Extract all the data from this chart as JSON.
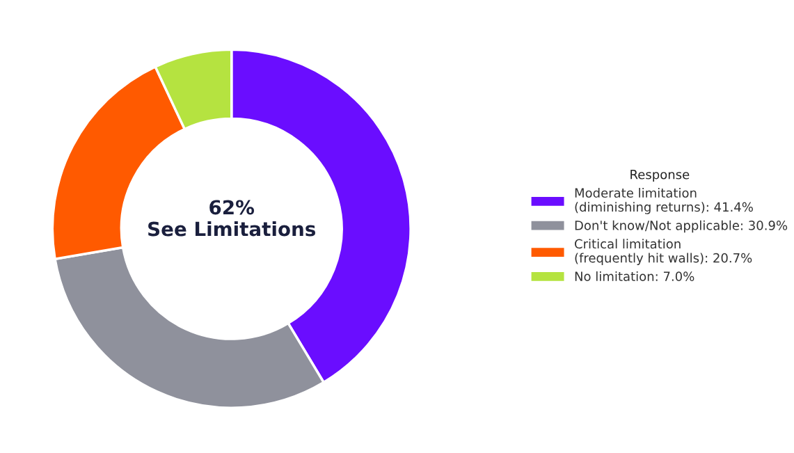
{
  "chart_data": {
    "type": "donut",
    "categories": [
      "Moderate limitation\n(diminishing returns): 41.4%",
      "Don't know/Not applicable: 30.9%",
      "Critical limitation\n(frequently hit walls): 20.7%",
      "No limitation: 7.0%"
    ],
    "values": [
      41.4,
      30.9,
      20.7,
      7.0
    ],
    "colors": [
      "#6a0dff",
      "#8f919c",
      "#ff5a00",
      "#b5e340"
    ],
    "legend_title": "Response",
    "legend": "right",
    "annotations": [
      "62%\nSee Limitations"
    ]
  }
}
